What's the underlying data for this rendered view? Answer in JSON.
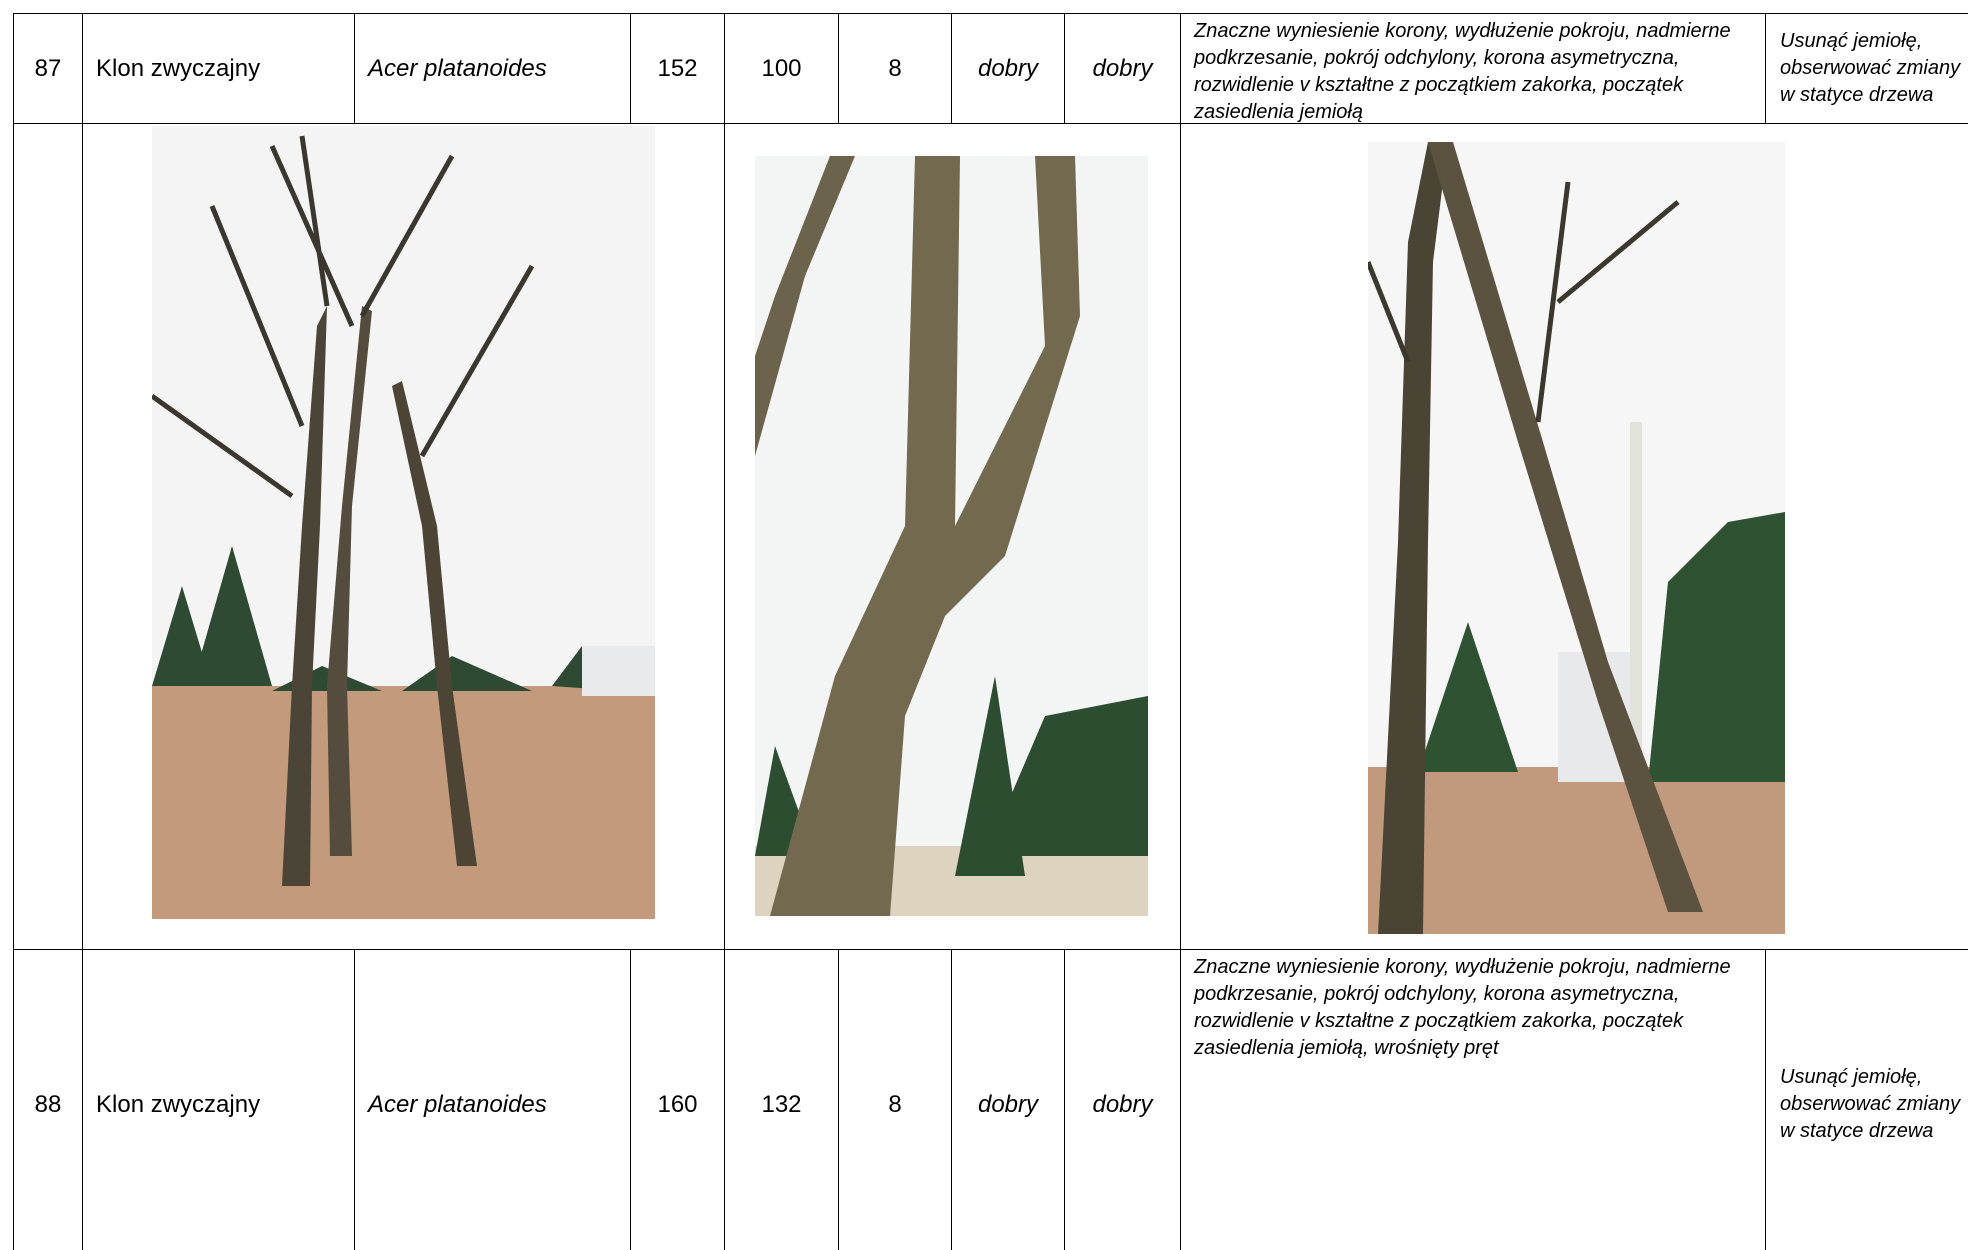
{
  "table": {
    "rows": [
      [
        "87",
        "Klon zwyczajny",
        "Acer platanoides",
        "152",
        "100",
        "8",
        "dobry",
        "dobry",
        "Znaczne wyniesienie korony, wydłużenie pokroju, nadmierne podkrzesanie, pokrój odchylony, korona asymetryczna, rozwidlenie v kształtne z początkiem zakorka, początek zasiedlenia jemiołą",
        "Usunąć jemiołę, obserwować zmiany w statyce drzewa"
      ],
      [
        "88",
        "Klon zwyczajny",
        "Acer platanoides",
        "160",
        "132",
        "8",
        "dobry",
        "dobry",
        "Znaczne wyniesienie korony, wydłużenie pokroju, nadmierne podkrzesanie, pokrój odchylony, korona asymetryczna, rozwidlenie v kształtne z początkiem zakorka, początek zasiedlenia jemiołą, wrośnięty pręt",
        "Usunąć jemiołę, obserwować zmiany w statyce drzewa"
      ]
    ],
    "photo_row": {
      "label": "87"
    }
  }
}
